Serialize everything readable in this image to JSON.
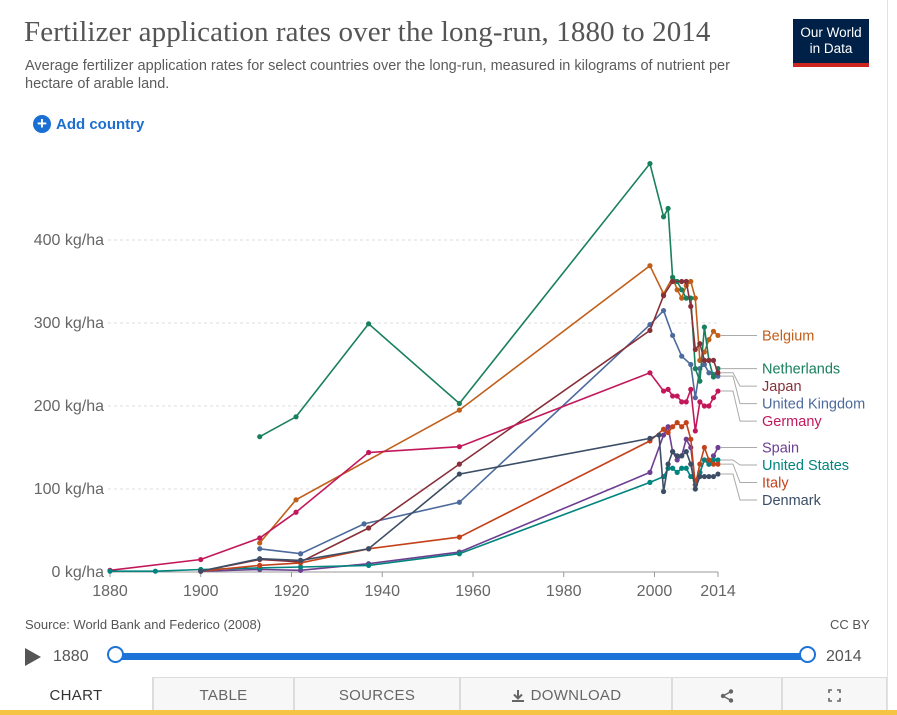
{
  "header": {
    "title": "Fertilizer application rates over the long-run, 1880 to 2014",
    "subtitle": "Average fertilizer application rates for select countries over the long-run, measured in kilograms of nutrient per hectare of arable land.",
    "logo_line1": "Our World",
    "logo_line2": "in Data"
  },
  "controls": {
    "add_country_label": "Add country"
  },
  "footer": {
    "source": "Source: World Bank and Federico (2008)",
    "license": "CC BY"
  },
  "timeline": {
    "start_label": "1880",
    "end_label": "2014",
    "start_value": 1880,
    "end_value": 2014
  },
  "tabs": [
    {
      "label": "CHART",
      "icon": null
    },
    {
      "label": "TABLE",
      "icon": null
    },
    {
      "label": "SOURCES",
      "icon": null
    },
    {
      "label": "DOWNLOAD",
      "icon": "download-icon"
    },
    {
      "label": "",
      "icon": "share-icon"
    },
    {
      "label": "",
      "icon": "fullscreen-icon"
    }
  ],
  "chart_data": {
    "type": "line",
    "title": "Fertilizer application rates over the long-run, 1880 to 2014",
    "xlabel": "",
    "ylabel": "",
    "xlim": [
      1880,
      2014
    ],
    "ylim": [
      0,
      500
    ],
    "x_ticks": [
      1880,
      1900,
      1920,
      1940,
      1960,
      1980,
      2000,
      2014
    ],
    "x_tick_labels": [
      "1880",
      "1900",
      "1920",
      "1940",
      "1960",
      "1980",
      "2000",
      "2014"
    ],
    "y_ticks": [
      0,
      100,
      200,
      300,
      400
    ],
    "y_tick_labels": [
      "0 kg/ha",
      "100 kg/ha",
      "200 kg/ha",
      "300 kg/ha",
      "400 kg/ha"
    ],
    "grid": "horizontal dashed",
    "legend": "right, labels at line ends",
    "series": [
      {
        "name": "Belgium",
        "color": "#c15f1a",
        "points": [
          [
            1913,
            35
          ],
          [
            1921,
            87
          ],
          [
            1957,
            195
          ],
          [
            1999,
            369
          ],
          [
            2002,
            335
          ],
          [
            2004,
            355
          ],
          [
            2005,
            340
          ],
          [
            2006,
            330
          ],
          [
            2007,
            345
          ],
          [
            2008,
            350
          ],
          [
            2009,
            330
          ],
          [
            2010,
            255
          ],
          [
            2011,
            265
          ],
          [
            2012,
            280
          ],
          [
            2013,
            290
          ],
          [
            2014,
            285
          ]
        ]
      },
      {
        "name": "United Kingdom",
        "color": "#4c6a9c",
        "points": [
          [
            1913,
            28
          ],
          [
            1922,
            22
          ],
          [
            1936,
            58
          ],
          [
            1957,
            84
          ],
          [
            1999,
            298
          ],
          [
            2002,
            315
          ],
          [
            2004,
            285
          ],
          [
            2006,
            260
          ],
          [
            2008,
            250
          ],
          [
            2009,
            210
          ],
          [
            2010,
            245
          ],
          [
            2011,
            250
          ],
          [
            2012,
            240
          ],
          [
            2013,
            238
          ],
          [
            2014,
            236
          ]
        ]
      },
      {
        "name": "Netherlands",
        "color": "#18805b",
        "points": [
          [
            1913,
            163
          ],
          [
            1921,
            187
          ],
          [
            1937,
            299
          ],
          [
            1957,
            203
          ],
          [
            1999,
            492
          ],
          [
            2002,
            428
          ],
          [
            2003,
            438
          ],
          [
            2004,
            355
          ],
          [
            2005,
            350
          ],
          [
            2006,
            340
          ],
          [
            2007,
            330
          ],
          [
            2008,
            330
          ],
          [
            2009,
            245
          ],
          [
            2010,
            230
          ],
          [
            2011,
            295
          ],
          [
            2012,
            255
          ],
          [
            2013,
            235
          ],
          [
            2014,
            245
          ]
        ]
      },
      {
        "name": "Japan",
        "color": "#883039",
        "points": [
          [
            1900,
            1
          ],
          [
            1913,
            15
          ],
          [
            1922,
            12
          ],
          [
            1937,
            53
          ],
          [
            1957,
            130
          ],
          [
            1999,
            291
          ],
          [
            2002,
            333
          ],
          [
            2004,
            350
          ],
          [
            2006,
            350
          ],
          [
            2007,
            350
          ],
          [
            2008,
            320
          ],
          [
            2009,
            268
          ],
          [
            2010,
            275
          ],
          [
            2011,
            255
          ],
          [
            2012,
            255
          ],
          [
            2013,
            255
          ],
          [
            2014,
            240
          ]
        ]
      },
      {
        "name": "Germany",
        "color": "#c2185b",
        "points": [
          [
            1880,
            2
          ],
          [
            1900,
            15
          ],
          [
            1913,
            41
          ],
          [
            1921,
            72
          ],
          [
            1937,
            144
          ],
          [
            1957,
            151
          ],
          [
            1999,
            240
          ],
          [
            2002,
            218
          ],
          [
            2003,
            220
          ],
          [
            2004,
            212
          ],
          [
            2005,
            212
          ],
          [
            2006,
            205
          ],
          [
            2007,
            205
          ],
          [
            2008,
            220
          ],
          [
            2009,
            170
          ],
          [
            2010,
            205
          ],
          [
            2011,
            200
          ],
          [
            2012,
            200
          ],
          [
            2013,
            210
          ],
          [
            2014,
            218
          ]
        ]
      },
      {
        "name": "Spain",
        "color": "#6d3e91",
        "points": [
          [
            1900,
            1
          ],
          [
            1913,
            3
          ],
          [
            1922,
            2
          ],
          [
            1937,
            10
          ],
          [
            1957,
            24
          ],
          [
            1999,
            120
          ],
          [
            2002,
            165
          ],
          [
            2003,
            175
          ],
          [
            2004,
            145
          ],
          [
            2005,
            135
          ],
          [
            2006,
            140
          ],
          [
            2007,
            160
          ],
          [
            2008,
            150
          ],
          [
            2009,
            105
          ],
          [
            2010,
            120
          ],
          [
            2011,
            135
          ],
          [
            2012,
            130
          ],
          [
            2013,
            140
          ],
          [
            2014,
            150
          ]
        ]
      },
      {
        "name": "United States",
        "color": "#00847e",
        "points": [
          [
            1880,
            1
          ],
          [
            1890,
            1
          ],
          [
            1900,
            3
          ],
          [
            1913,
            5
          ],
          [
            1922,
            6
          ],
          [
            1937,
            8
          ],
          [
            1957,
            22
          ],
          [
            1999,
            108
          ],
          [
            2002,
            115
          ],
          [
            2003,
            125
          ],
          [
            2004,
            125
          ],
          [
            2005,
            120
          ],
          [
            2006,
            125
          ],
          [
            2007,
            125
          ],
          [
            2008,
            115
          ],
          [
            2009,
            110
          ],
          [
            2010,
            120
          ],
          [
            2011,
            135
          ],
          [
            2012,
            130
          ],
          [
            2013,
            135
          ],
          [
            2014,
            135
          ]
        ]
      },
      {
        "name": "Italy",
        "color": "#c4421a",
        "points": [
          [
            1900,
            1
          ],
          [
            1913,
            8
          ],
          [
            1922,
            11
          ],
          [
            1937,
            28
          ],
          [
            1957,
            42
          ],
          [
            1999,
            158
          ],
          [
            2002,
            172
          ],
          [
            2003,
            168
          ],
          [
            2004,
            175
          ],
          [
            2005,
            180
          ],
          [
            2006,
            175
          ],
          [
            2007,
            180
          ],
          [
            2008,
            160
          ],
          [
            2009,
            105
          ],
          [
            2010,
            130
          ],
          [
            2011,
            150
          ],
          [
            2012,
            135
          ],
          [
            2013,
            130
          ],
          [
            2014,
            130
          ]
        ]
      },
      {
        "name": "Denmark",
        "color": "#3c4e66",
        "points": [
          [
            1900,
            1
          ],
          [
            1913,
            16
          ],
          [
            1922,
            14
          ],
          [
            1937,
            28
          ],
          [
            1957,
            118
          ],
          [
            1999,
            161
          ],
          [
            2001,
            165
          ],
          [
            2002,
            97
          ],
          [
            2003,
            130
          ],
          [
            2004,
            145
          ],
          [
            2005,
            140
          ],
          [
            2006,
            140
          ],
          [
            2007,
            145
          ],
          [
            2008,
            130
          ],
          [
            2009,
            100
          ],
          [
            2010,
            115
          ],
          [
            2011,
            115
          ],
          [
            2012,
            115
          ],
          [
            2013,
            115
          ],
          [
            2014,
            118
          ]
        ]
      }
    ]
  }
}
